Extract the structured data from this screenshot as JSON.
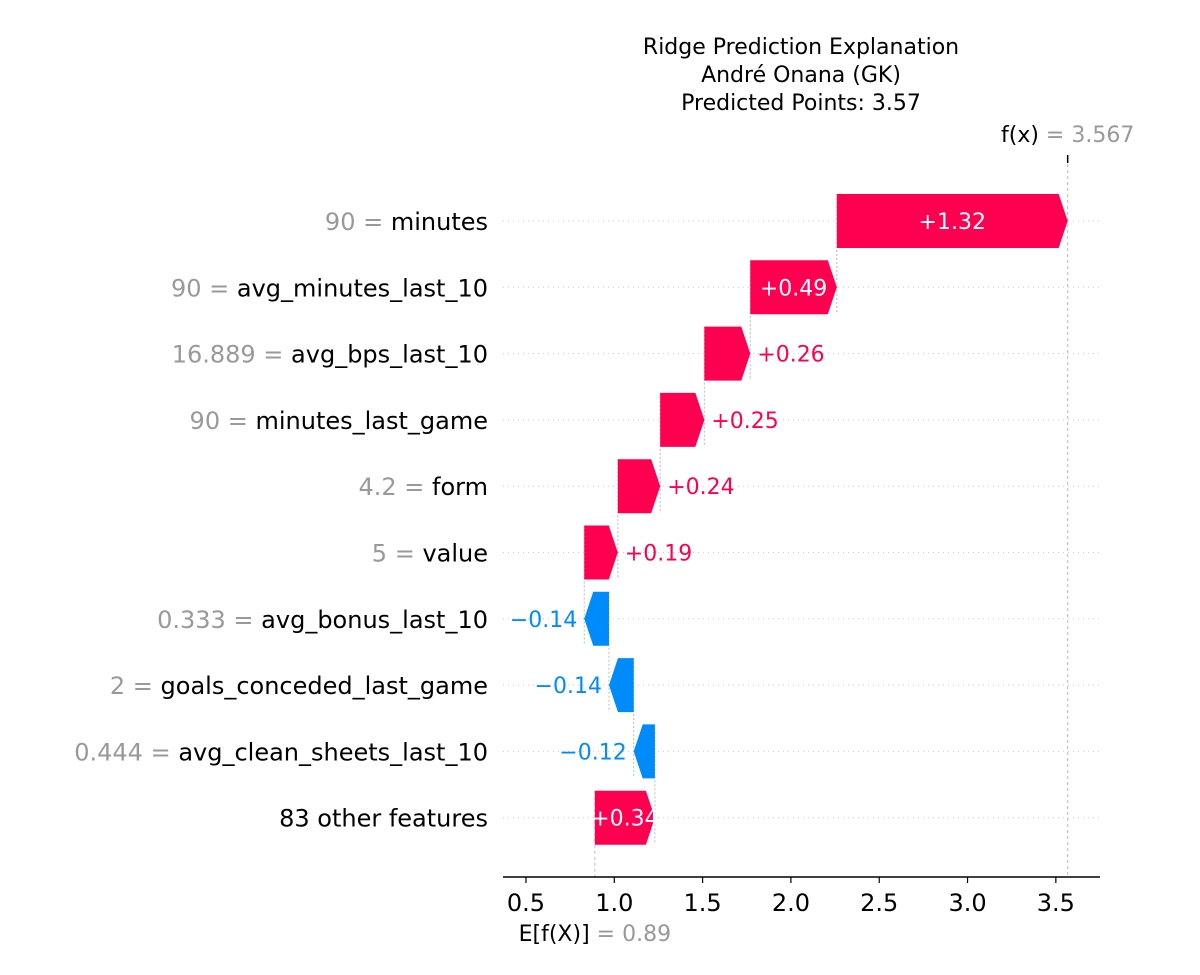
{
  "chart_data": {
    "type": "waterfall",
    "title_lines": [
      "Ridge Prediction Explanation",
      "André Onana (GK)",
      "Predicted Points: 3.57"
    ],
    "base_value": 0.89,
    "base_value_label": "0.89",
    "output_value": 3.567,
    "output_value_label": "3.567",
    "fx_label": "f(x)",
    "ex_label": "E[f(X)]",
    "eq": "=",
    "xlim": [
      0.37,
      3.75
    ],
    "x_ticks": [
      0.5,
      1.0,
      1.5,
      2.0,
      2.5,
      3.0,
      3.5
    ],
    "x_tick_labels": [
      "0.5",
      "1.0",
      "1.5",
      "2.0",
      "2.5",
      "3.0",
      "3.5"
    ],
    "positive_color": "#ff0051",
    "negative_color": "#008bfb",
    "features": [
      {
        "value": "90",
        "name": "minutes",
        "contribution": 1.32,
        "label": "+1.32"
      },
      {
        "value": "90",
        "name": "avg_minutes_last_10",
        "contribution": 0.49,
        "label": "+0.49"
      },
      {
        "value": "16.889",
        "name": "avg_bps_last_10",
        "contribution": 0.26,
        "label": "+0.26"
      },
      {
        "value": "90",
        "name": "minutes_last_game",
        "contribution": 0.25,
        "label": "+0.25"
      },
      {
        "value": "4.2",
        "name": "form",
        "contribution": 0.24,
        "label": "+0.24"
      },
      {
        "value": "5",
        "name": "value",
        "contribution": 0.19,
        "label": "+0.19"
      },
      {
        "value": "0.333",
        "name": "avg_bonus_last_10",
        "contribution": -0.14,
        "label": "−0.14"
      },
      {
        "value": "2",
        "name": "goals_conceded_last_game",
        "contribution": -0.14,
        "label": "−0.14"
      },
      {
        "value": "0.444",
        "name": "avg_clean_sheets_last_10",
        "contribution": -0.12,
        "label": "−0.12"
      },
      {
        "value": "",
        "name": "83 other features",
        "contribution": 0.34,
        "label": "+0.34"
      }
    ]
  }
}
